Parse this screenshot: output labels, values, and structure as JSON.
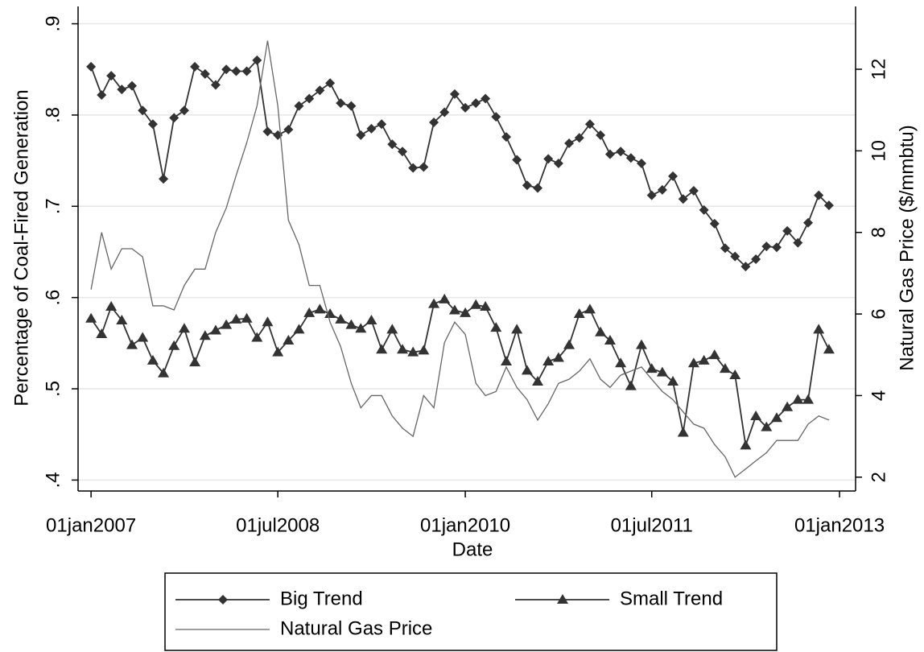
{
  "chart_data": {
    "type": "line",
    "xlabel": "Date",
    "ylabel": "Percentage of Coal-Fired Generation",
    "y2label": "Natural Gas Price ($/mmbtu)",
    "x": [
      "2007-01-01",
      "2007-02-01",
      "2007-03-01",
      "2007-04-01",
      "2007-05-01",
      "2007-06-01",
      "2007-07-01",
      "2007-08-01",
      "2007-09-01",
      "2007-10-01",
      "2007-11-01",
      "2007-12-01",
      "2008-01-01",
      "2008-02-01",
      "2008-03-01",
      "2008-04-01",
      "2008-05-01",
      "2008-06-01",
      "2008-07-01",
      "2008-08-01",
      "2008-09-01",
      "2008-10-01",
      "2008-11-01",
      "2008-12-01",
      "2009-01-01",
      "2009-02-01",
      "2009-03-01",
      "2009-04-01",
      "2009-05-01",
      "2009-06-01",
      "2009-07-01",
      "2009-08-01",
      "2009-09-01",
      "2009-10-01",
      "2009-11-01",
      "2009-12-01",
      "2010-01-01",
      "2010-02-01",
      "2010-03-01",
      "2010-04-01",
      "2010-05-01",
      "2010-06-01",
      "2010-07-01",
      "2010-08-01",
      "2010-09-01",
      "2010-10-01",
      "2010-11-01",
      "2010-12-01",
      "2011-01-01",
      "2011-02-01",
      "2011-03-01",
      "2011-04-01",
      "2011-05-01",
      "2011-06-01",
      "2011-07-01",
      "2011-08-01",
      "2011-09-01",
      "2011-10-01",
      "2011-11-01",
      "2011-12-01",
      "2012-01-01",
      "2012-02-01",
      "2012-03-01",
      "2012-04-01",
      "2012-05-01",
      "2012-06-01",
      "2012-07-01",
      "2012-08-01",
      "2012-09-01",
      "2012-10-01",
      "2012-11-01",
      "2012-12-01"
    ],
    "xlim": [
      "2006-11-24",
      "2013-02-17"
    ],
    "xticks": [
      {
        "value": "2007-01-01",
        "label": "01jan2007"
      },
      {
        "value": "2008-07-01",
        "label": "01jul2008"
      },
      {
        "value": "2010-01-01",
        "label": "01jan2010"
      },
      {
        "value": "2011-07-01",
        "label": "01jul2011"
      },
      {
        "value": "2013-01-01",
        "label": "01jan2013"
      }
    ],
    "ylim": [
      0.388,
      0.919
    ],
    "yticks": [
      {
        "value": 0.4,
        "label": ".4"
      },
      {
        "value": 0.5,
        "label": ".5"
      },
      {
        "value": 0.6,
        "label": ".6"
      },
      {
        "value": 0.7,
        "label": ".7"
      },
      {
        "value": 0.8,
        "label": ".8"
      },
      {
        "value": 0.9,
        "label": ".9"
      }
    ],
    "y2lim": [
      1.66,
      13.54
    ],
    "y2ticks": [
      2,
      4,
      6,
      8,
      10,
      12
    ],
    "grid": true,
    "legend": "bottom",
    "series": [
      {
        "name": "Big Trend",
        "color": "#333333",
        "marker": "diamond",
        "values": [
          0.853,
          0.822,
          0.843,
          0.828,
          0.832,
          0.805,
          0.79,
          0.73,
          0.797,
          0.805,
          0.853,
          0.845,
          0.833,
          0.85,
          0.848,
          0.848,
          0.86,
          0.782,
          0.778,
          0.784,
          0.81,
          0.818,
          0.827,
          0.835,
          0.813,
          0.81,
          0.778,
          0.785,
          0.79,
          0.768,
          0.76,
          0.742,
          0.743,
          0.792,
          0.803,
          0.823,
          0.808,
          0.813,
          0.818,
          0.798,
          0.776,
          0.751,
          0.723,
          0.72,
          0.752,
          0.747,
          0.769,
          0.775,
          0.79,
          0.778,
          0.757,
          0.76,
          0.753,
          0.747,
          0.712,
          0.718,
          0.733,
          0.708,
          0.717,
          0.696,
          0.681,
          0.654,
          0.645,
          0.634,
          0.642,
          0.656,
          0.655,
          0.673,
          0.66,
          0.682,
          0.712,
          0.701
        ]
      },
      {
        "name": "Small Trend",
        "color": "#333333",
        "marker": "triangle",
        "values": [
          0.577,
          0.56,
          0.59,
          0.575,
          0.548,
          0.556,
          0.531,
          0.517,
          0.547,
          0.566,
          0.529,
          0.558,
          0.564,
          0.57,
          0.576,
          0.577,
          0.556,
          0.573,
          0.54,
          0.553,
          0.565,
          0.583,
          0.587,
          0.582,
          0.576,
          0.57,
          0.566,
          0.575,
          0.543,
          0.565,
          0.543,
          0.54,
          0.542,
          0.593,
          0.598,
          0.586,
          0.583,
          0.592,
          0.59,
          0.567,
          0.53,
          0.565,
          0.52,
          0.508,
          0.53,
          0.534,
          0.548,
          0.582,
          0.587,
          0.562,
          0.553,
          0.528,
          0.503,
          0.548,
          0.522,
          0.518,
          0.508,
          0.452,
          0.528,
          0.531,
          0.537,
          0.522,
          0.515,
          0.438,
          0.47,
          0.458,
          0.468,
          0.48,
          0.488,
          0.488,
          0.565,
          0.543
        ]
      },
      {
        "name": "Natural Gas Price",
        "color": "#666666",
        "axis": "y2",
        "values": [
          6.6,
          8.0,
          7.1,
          7.6,
          7.6,
          7.4,
          6.2,
          6.2,
          6.1,
          6.7,
          7.1,
          7.1,
          8.0,
          8.6,
          9.4,
          10.2,
          11.1,
          12.7,
          11.1,
          8.3,
          7.7,
          6.7,
          6.7,
          5.8,
          5.2,
          4.3,
          3.7,
          4.0,
          4.0,
          3.5,
          3.2,
          3.0,
          4.0,
          3.7,
          5.3,
          5.8,
          5.5,
          4.3,
          4.0,
          4.1,
          4.7,
          4.2,
          3.9,
          3.4,
          3.8,
          4.3,
          4.4,
          4.6,
          4.9,
          4.4,
          4.2,
          4.5,
          4.6,
          4.7,
          4.4,
          4.1,
          3.9,
          3.6,
          3.3,
          3.2,
          2.8,
          2.5,
          2.0,
          2.2,
          2.4,
          2.6,
          2.9,
          2.9,
          2.9,
          3.3,
          3.5,
          3.4
        ]
      }
    ]
  }
}
